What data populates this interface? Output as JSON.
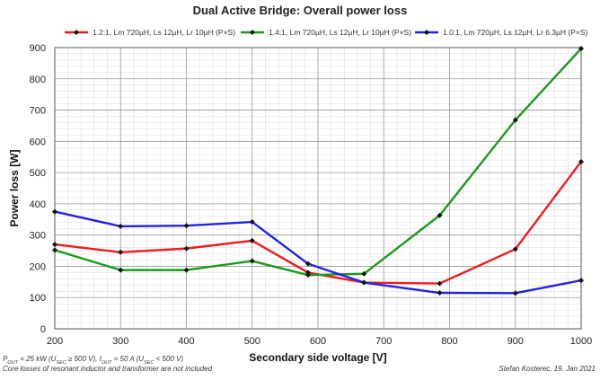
{
  "chart_data": {
    "type": "line",
    "title": "Dual Active Bridge: Overall power loss",
    "xlabel": "Secondary side voltage [V]",
    "ylabel": "Power loss [W]",
    "xlim": [
      200,
      1000
    ],
    "ylim": [
      0,
      900
    ],
    "xticks": [
      200,
      300,
      400,
      500,
      600,
      700,
      800,
      900,
      1000
    ],
    "yticks": [
      0,
      100,
      200,
      300,
      400,
      500,
      600,
      700,
      800,
      900
    ],
    "grid": true,
    "legend_position": "top",
    "series": [
      {
        "name": "1.2:1, Lm 720µH, Ls 12µH, Lr 10µH (P×S)",
        "color": "#ee1c1c",
        "x": [
          200,
          300,
          400,
          500,
          585,
          670,
          785,
          900,
          1000
        ],
        "y": [
          270,
          245,
          257,
          282,
          180,
          148,
          145,
          255,
          535
        ]
      },
      {
        "name": "1.4:1, Lm 720µH, Ls 12µH, Lr 10µH (P×S)",
        "color": "#1a9a1a",
        "x": [
          200,
          300,
          400,
          500,
          585,
          670,
          785,
          900,
          1000
        ],
        "y": [
          252,
          188,
          188,
          217,
          172,
          176,
          363,
          668,
          897
        ]
      },
      {
        "name": "1.0:1, Lm 720µH, Ls 12µH, Lr 6.3µH (P×S)",
        "color": "#2222ee",
        "x": [
          200,
          300,
          400,
          500,
          585,
          670,
          785,
          900,
          1000
        ],
        "y": [
          375,
          328,
          330,
          342,
          208,
          148,
          115,
          114,
          155
        ]
      }
    ]
  },
  "footnotes": {
    "line1_a": "P",
    "line1_a_sub": "OUT",
    "line1_b": " = 25 kW (U",
    "line1_b_sub": "SEC",
    "line1_c": " ≥ 500 V), I",
    "line1_c_sub": "OUT",
    "line1_d": " = 50 A (U",
    "line1_d_sub": "SEC",
    "line1_e": " < 500 V)",
    "line2": "Core losses of resonant inductor and transformer are not included",
    "credit": "Stefan Kosterec, 19. Jan 2021"
  }
}
